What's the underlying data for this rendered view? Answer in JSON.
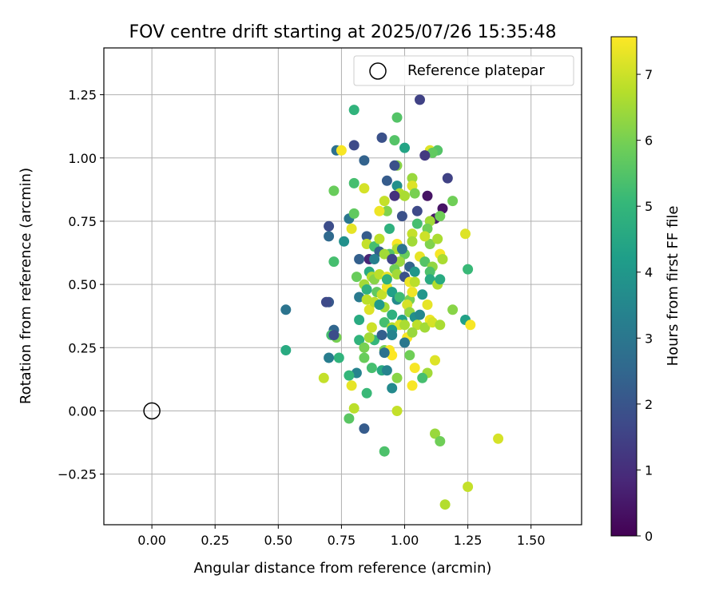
{
  "chart_data": {
    "type": "scatter",
    "title": "FOV centre drift starting at 2025/07/26 15:35:48",
    "xlabel": "Angular distance from reference (arcmin)",
    "ylabel": "Rotation from reference (arcmin)",
    "xlim": [
      -0.19,
      1.7
    ],
    "ylim": [
      -0.45,
      1.435
    ],
    "xticks": [
      0.0,
      0.25,
      0.5,
      0.75,
      1.0,
      1.25,
      1.5
    ],
    "xtick_labels": [
      "0.00",
      "0.25",
      "0.50",
      "0.75",
      "1.00",
      "1.25",
      "1.50"
    ],
    "yticks": [
      -0.25,
      0.0,
      0.25,
      0.5,
      0.75,
      1.0,
      1.25
    ],
    "ytick_labels": [
      "−0.25",
      "0.00",
      "0.25",
      "0.50",
      "0.75",
      "1.00",
      "1.25"
    ],
    "grid": true,
    "legend": {
      "placement": "top-right",
      "entries": [
        "Reference platepar"
      ]
    },
    "reference": {
      "x": 0.0,
      "y": 0.0,
      "marker": "open-circle"
    },
    "colorbar": {
      "label": "Hours from first FF file",
      "colormap": "viridis",
      "min": 0,
      "max": 7.57,
      "ticks": [
        0,
        1,
        2,
        3,
        4,
        5,
        6,
        7
      ],
      "tick_labels": [
        "0",
        "1",
        "2",
        "3",
        "4",
        "5",
        "6",
        "7"
      ]
    },
    "points": [
      [
        1.06,
        1.23,
        1.5
      ],
      [
        0.8,
        1.19,
        4.9
      ],
      [
        0.97,
        1.16,
        5.5
      ],
      [
        0.91,
        1.08,
        1.9
      ],
      [
        0.8,
        1.05,
        1.7
      ],
      [
        0.73,
        1.03,
        2.8
      ],
      [
        0.96,
        1.07,
        5.5
      ],
      [
        0.75,
        1.03,
        7.5
      ],
      [
        1.1,
        1.03,
        7.2
      ],
      [
        1.13,
        1.03,
        5.5
      ],
      [
        1.0,
        1.04,
        4.4
      ],
      [
        1.11,
        1.02,
        5.7
      ],
      [
        0.84,
        0.99,
        2.4
      ],
      [
        0.97,
        0.97,
        6.2
      ],
      [
        0.96,
        0.97,
        1.9
      ],
      [
        1.08,
        1.01,
        1.3
      ],
      [
        1.17,
        0.92,
        1.5
      ],
      [
        0.93,
        0.91,
        2.2
      ],
      [
        1.03,
        0.92,
        6.4
      ],
      [
        1.03,
        0.89,
        7.2
      ],
      [
        0.72,
        0.87,
        5.8
      ],
      [
        0.8,
        0.9,
        5.3
      ],
      [
        0.84,
        0.88,
        7.1
      ],
      [
        0.97,
        0.89,
        3.8
      ],
      [
        0.98,
        0.86,
        6.7
      ],
      [
        1.0,
        0.85,
        6.6
      ],
      [
        1.09,
        0.85,
        0.4
      ],
      [
        0.96,
        0.85,
        1.1
      ],
      [
        1.04,
        0.86,
        6.0
      ],
      [
        1.19,
        0.83,
        5.9
      ],
      [
        0.92,
        0.83,
        6.9
      ],
      [
        0.93,
        0.79,
        6.1
      ],
      [
        0.9,
        0.79,
        7.4
      ],
      [
        1.05,
        0.79,
        1.7
      ],
      [
        0.99,
        0.77,
        1.9
      ],
      [
        1.12,
        0.76,
        0.5
      ],
      [
        1.15,
        0.8,
        0.4
      ],
      [
        1.14,
        0.77,
        5.9
      ],
      [
        1.1,
        0.75,
        6.5
      ],
      [
        1.05,
        0.74,
        5.3
      ],
      [
        0.78,
        0.76,
        3.0
      ],
      [
        0.8,
        0.78,
        5.7
      ],
      [
        0.7,
        0.73,
        1.8
      ],
      [
        0.79,
        0.72,
        7.3
      ],
      [
        1.24,
        0.7,
        7.2
      ],
      [
        0.7,
        0.69,
        2.6
      ],
      [
        0.76,
        0.67,
        3.8
      ],
      [
        0.94,
        0.72,
        4.8
      ],
      [
        1.03,
        0.7,
        6.9
      ],
      [
        1.09,
        0.72,
        5.9
      ],
      [
        0.85,
        0.69,
        2.2
      ],
      [
        0.85,
        0.66,
        6.9
      ],
      [
        0.88,
        0.65,
        5.3
      ],
      [
        0.9,
        0.68,
        6.8
      ],
      [
        0.97,
        0.66,
        7.5
      ],
      [
        1.1,
        0.66,
        6.1
      ],
      [
        1.13,
        0.68,
        6.6
      ],
      [
        1.08,
        0.69,
        7.0
      ],
      [
        1.03,
        0.67,
        6.5
      ],
      [
        0.97,
        0.64,
        6.6
      ],
      [
        0.86,
        0.6,
        0.8
      ],
      [
        0.82,
        0.6,
        2.3
      ],
      [
        0.72,
        0.59,
        5.3
      ],
      [
        0.9,
        0.63,
        2.3
      ],
      [
        0.94,
        0.62,
        5.5
      ],
      [
        0.92,
        0.62,
        6.5
      ],
      [
        1.0,
        0.62,
        5.8
      ],
      [
        1.06,
        0.61,
        7.3
      ],
      [
        1.08,
        0.59,
        5.5
      ],
      [
        1.14,
        0.62,
        7.5
      ],
      [
        1.15,
        0.6,
        6.6
      ],
      [
        0.98,
        0.59,
        6.4
      ],
      [
        0.95,
        0.6,
        1.6
      ],
      [
        1.02,
        0.57,
        2.4
      ],
      [
        1.04,
        0.55,
        4.0
      ],
      [
        1.11,
        0.57,
        6.3
      ],
      [
        1.1,
        0.55,
        5.4
      ],
      [
        1.25,
        0.56,
        5.1
      ],
      [
        0.81,
        0.53,
        5.8
      ],
      [
        0.86,
        0.55,
        4.6
      ],
      [
        0.87,
        0.53,
        6.7
      ],
      [
        0.88,
        0.52,
        6.2
      ],
      [
        0.9,
        0.54,
        6.8
      ],
      [
        0.93,
        0.53,
        7.3
      ],
      [
        0.96,
        0.56,
        5.9
      ],
      [
        0.97,
        0.54,
        6.5
      ],
      [
        1.0,
        0.53,
        1.9
      ],
      [
        1.02,
        0.51,
        7.4
      ],
      [
        1.1,
        0.52,
        4.6
      ],
      [
        1.13,
        0.5,
        6.7
      ],
      [
        1.14,
        0.52,
        4.6
      ],
      [
        0.84,
        0.5,
        6.5
      ],
      [
        0.85,
        0.48,
        4.8
      ],
      [
        0.82,
        0.45,
        3.1
      ],
      [
        0.85,
        0.44,
        6.8
      ],
      [
        0.89,
        0.47,
        5.7
      ],
      [
        0.91,
        0.46,
        6.9
      ],
      [
        0.93,
        0.49,
        7.4
      ],
      [
        0.95,
        0.47,
        4.3
      ],
      [
        0.97,
        0.44,
        3.6
      ],
      [
        1.02,
        0.44,
        6.0
      ],
      [
        1.03,
        0.47,
        7.4
      ],
      [
        1.01,
        0.42,
        7.1
      ],
      [
        1.09,
        0.42,
        7.3
      ],
      [
        1.07,
        0.46,
        4.0
      ],
      [
        0.7,
        0.43,
        2.1
      ],
      [
        0.69,
        0.43,
        1.7
      ],
      [
        0.86,
        0.4,
        7.2
      ],
      [
        0.88,
        0.43,
        6.8
      ],
      [
        0.92,
        0.41,
        6.5
      ],
      [
        0.9,
        0.42,
        4.1
      ],
      [
        0.95,
        0.38,
        4.8
      ],
      [
        0.99,
        0.36,
        4.3
      ],
      [
        1.02,
        0.39,
        6.3
      ],
      [
        1.04,
        0.37,
        3.8
      ],
      [
        1.06,
        0.38,
        3.5
      ],
      [
        1.1,
        0.36,
        7.4
      ],
      [
        1.19,
        0.4,
        6.2
      ],
      [
        0.82,
        0.36,
        4.6
      ],
      [
        0.53,
        0.4,
        2.9
      ],
      [
        0.92,
        0.35,
        5.3
      ],
      [
        0.95,
        0.33,
        6.7
      ],
      [
        0.98,
        0.34,
        7.2
      ],
      [
        1.0,
        0.34,
        6.6
      ],
      [
        1.05,
        0.34,
        6.8
      ],
      [
        1.08,
        0.33,
        6.5
      ],
      [
        1.11,
        0.35,
        7.1
      ],
      [
        1.14,
        0.34,
        6.6
      ],
      [
        1.24,
        0.36,
        4.3
      ],
      [
        1.26,
        0.34,
        7.5
      ],
      [
        0.87,
        0.33,
        7.0
      ],
      [
        0.72,
        0.32,
        2.5
      ],
      [
        0.71,
        0.3,
        5.3
      ],
      [
        0.73,
        0.29,
        6.0
      ],
      [
        0.72,
        0.3,
        1.8
      ],
      [
        0.82,
        0.28,
        4.9
      ],
      [
        0.88,
        0.28,
        5.0
      ],
      [
        0.86,
        0.29,
        6.5
      ],
      [
        0.91,
        0.3,
        2.3
      ],
      [
        0.95,
        0.32,
        4.1
      ],
      [
        1.01,
        0.29,
        7.5
      ],
      [
        1.03,
        0.31,
        6.4
      ],
      [
        0.84,
        0.25,
        6.0
      ],
      [
        0.92,
        0.24,
        6.0
      ],
      [
        0.94,
        0.24,
        7.5
      ],
      [
        0.95,
        0.22,
        7.6
      ],
      [
        1.0,
        0.27,
        3.0
      ],
      [
        1.02,
        0.22,
        5.9
      ],
      [
        1.12,
        0.2,
        7.2
      ],
      [
        0.53,
        0.24,
        4.6
      ],
      [
        0.92,
        0.23,
        2.8
      ],
      [
        0.84,
        0.21,
        5.8
      ],
      [
        0.74,
        0.21,
        4.9
      ],
      [
        0.7,
        0.21,
        3.2
      ],
      [
        0.87,
        0.17,
        5.3
      ],
      [
        0.91,
        0.16,
        4.6
      ],
      [
        0.93,
        0.16,
        3.4
      ],
      [
        0.81,
        0.15,
        3.4
      ],
      [
        0.78,
        0.14,
        5.0
      ],
      [
        0.97,
        0.13,
        6.2
      ],
      [
        1.04,
        0.17,
        7.5
      ],
      [
        1.09,
        0.15,
        6.5
      ],
      [
        1.07,
        0.13,
        5.3
      ],
      [
        0.68,
        0.13,
        6.9
      ],
      [
        0.95,
        0.09,
        3.6
      ],
      [
        1.03,
        0.1,
        7.5
      ],
      [
        0.79,
        0.1,
        7.3
      ],
      [
        0.85,
        0.07,
        5.1
      ],
      [
        0.8,
        0.01,
        6.8
      ],
      [
        0.97,
        0.0,
        6.9
      ],
      [
        0.78,
        -0.03,
        5.6
      ],
      [
        0.84,
        -0.07,
        2.2
      ],
      [
        1.12,
        -0.09,
        6.4
      ],
      [
        1.14,
        -0.12,
        5.9
      ],
      [
        1.37,
        -0.11,
        7.1
      ],
      [
        0.92,
        -0.16,
        5.4
      ],
      [
        1.25,
        -0.3,
        6.9
      ],
      [
        1.16,
        -0.37,
        6.7
      ],
      [
        0.88,
        0.6,
        3.3
      ],
      [
        0.99,
        0.64,
        2.9
      ],
      [
        0.98,
        0.45,
        5.2
      ],
      [
        0.95,
        0.3,
        3.4
      ],
      [
        0.93,
        0.52,
        4.8
      ],
      [
        1.04,
        0.51,
        6.8
      ]
    ]
  }
}
